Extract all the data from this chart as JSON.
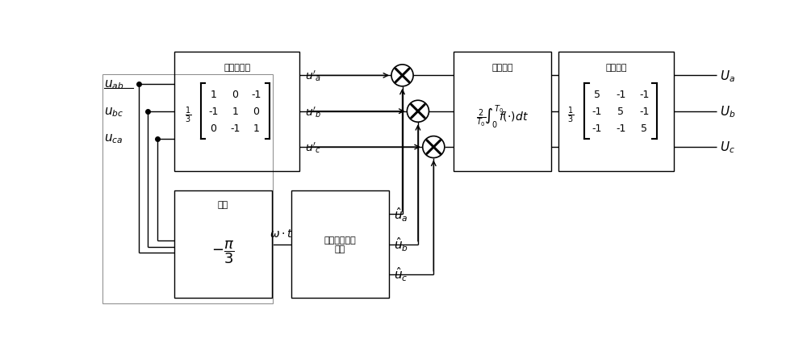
{
  "bg_color": "#ffffff",
  "line_color": "#000000",
  "box_border_color": "#000000",
  "text_color": "#000000",
  "fig_width": 10.0,
  "fig_height": 4.31,
  "box1_title": "线转相算法",
  "box2_title": "锁相",
  "box3_title": "构造三相参考\n电压",
  "box4_title": "分离幅値",
  "box5_title": "重构幅値"
}
